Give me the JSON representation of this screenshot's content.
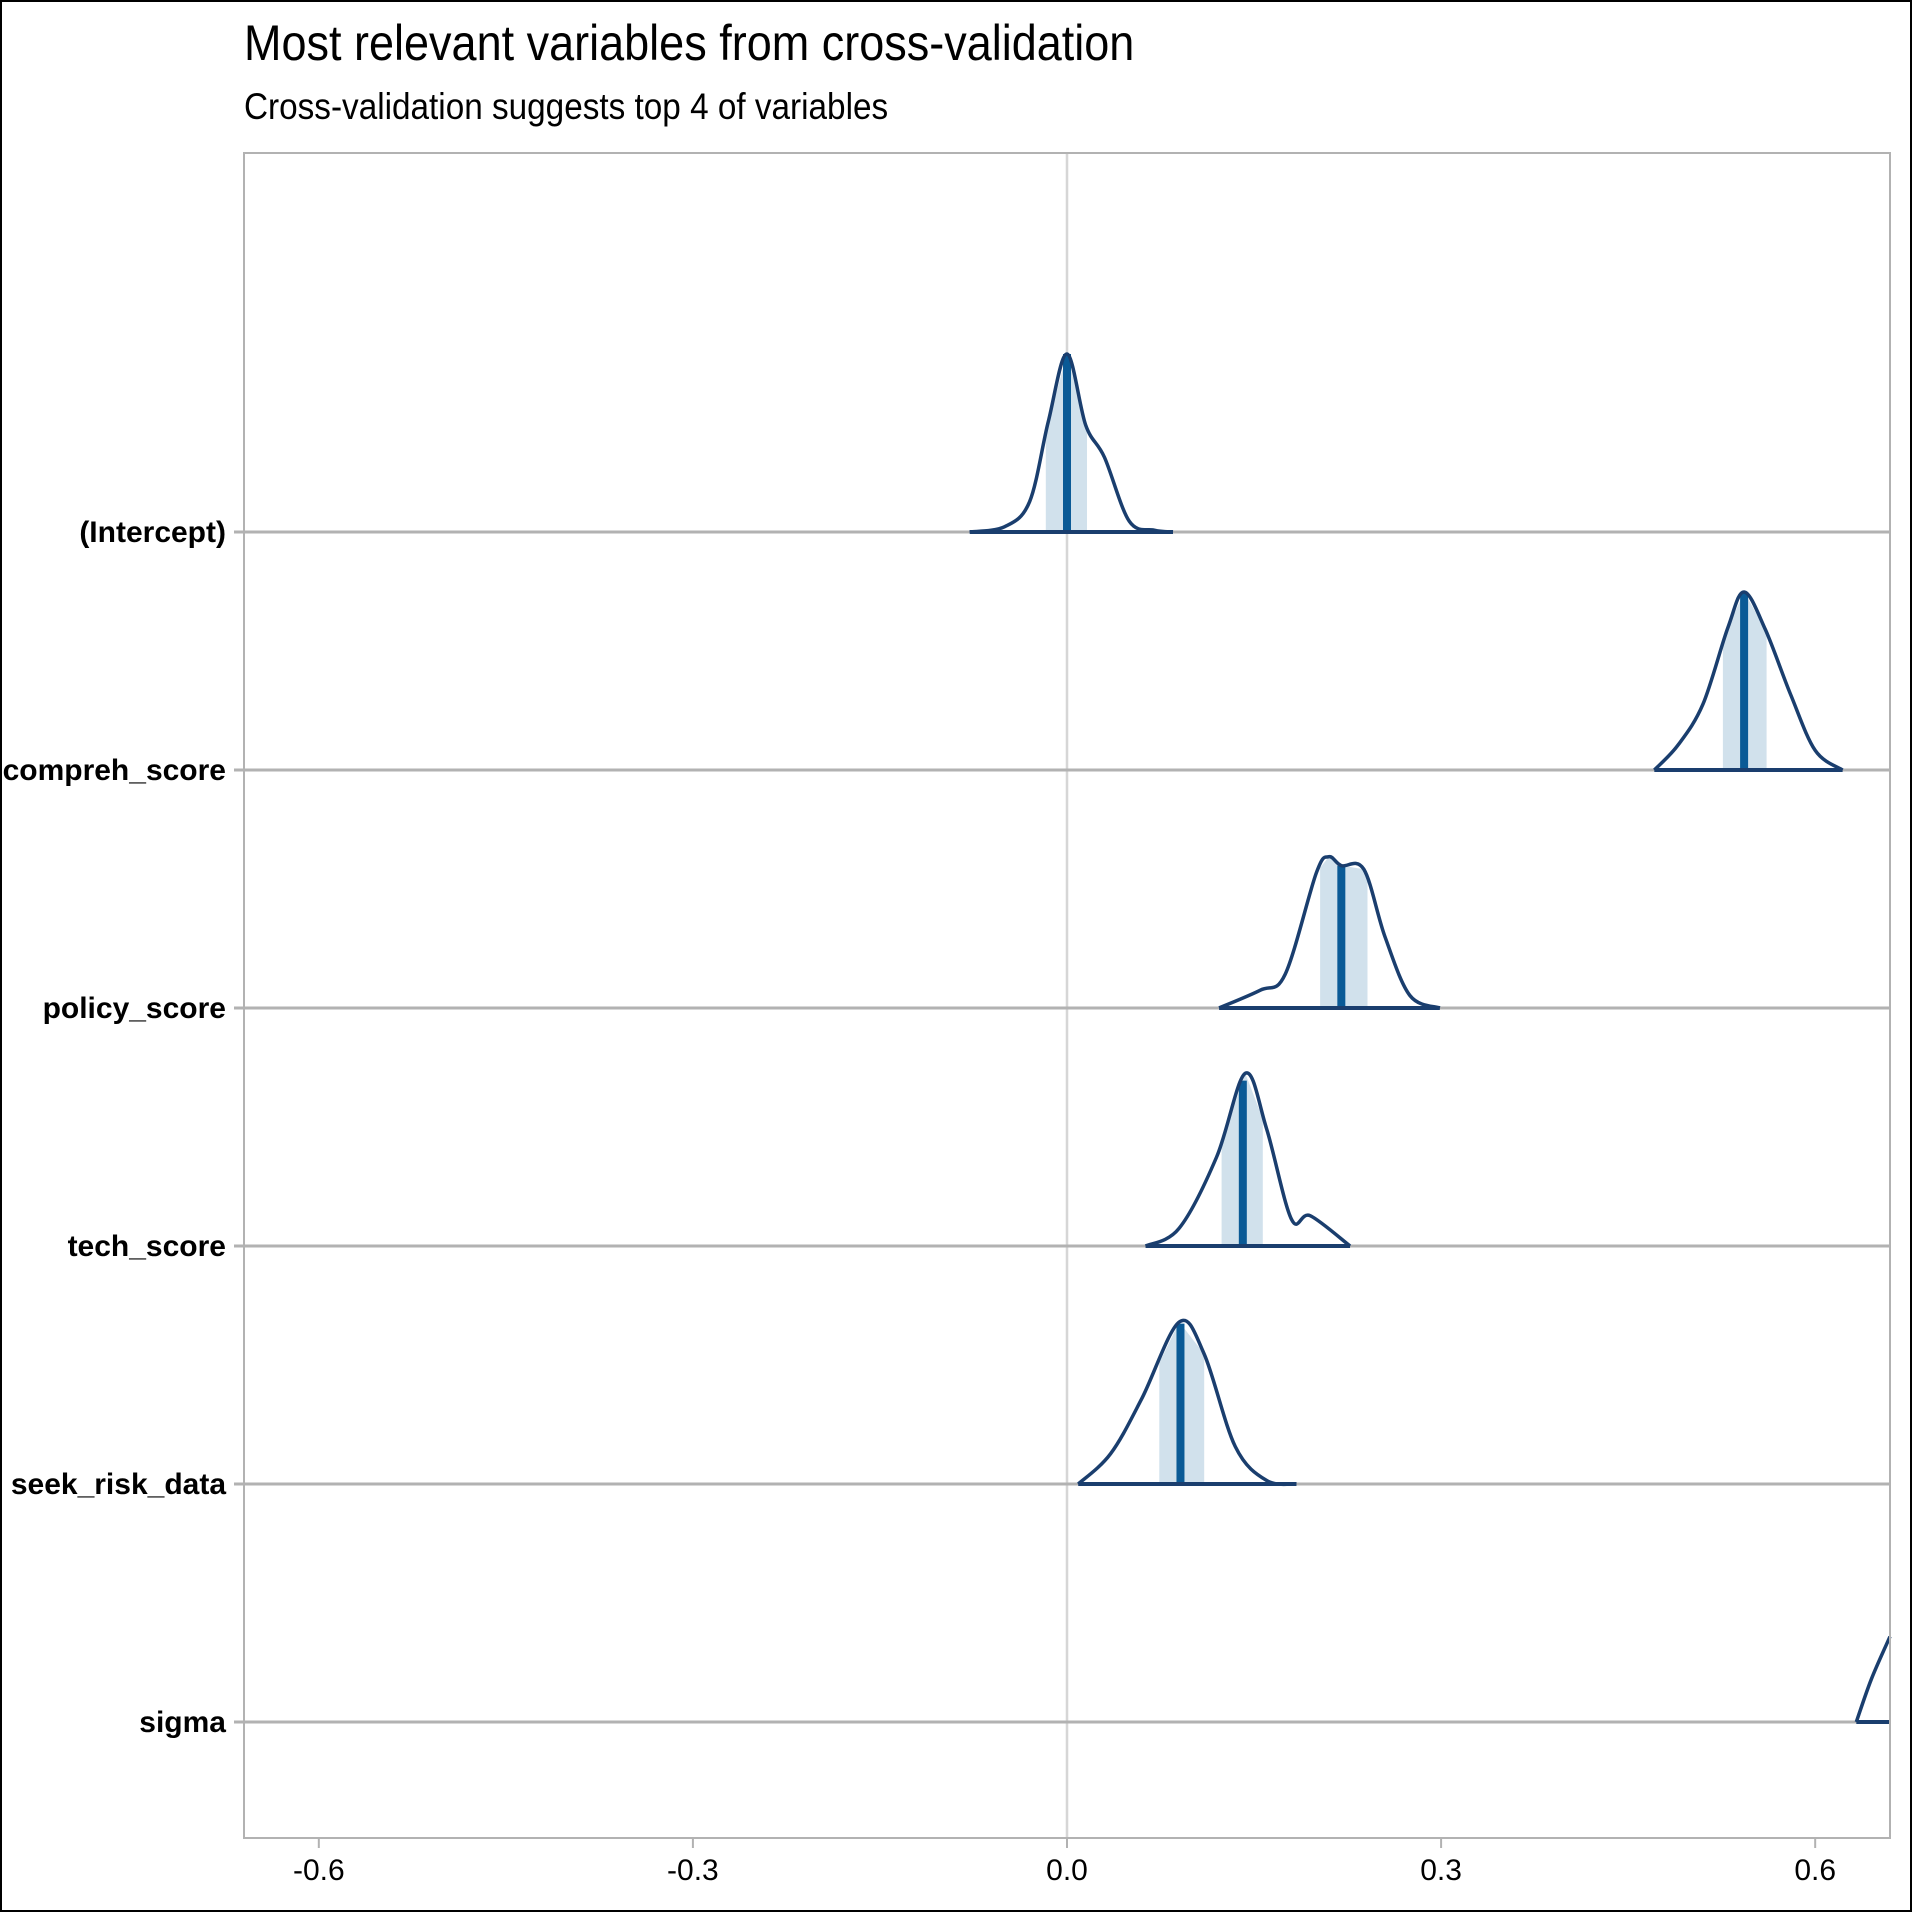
{
  "chart_data": {
    "type": "density-ridges",
    "title": "Most relevant variables from cross-validation",
    "subtitle": "Cross-validation suggests top 4 of variables",
    "xlabel": "",
    "ylabel": "",
    "xlim": [
      -0.66,
      0.66
    ],
    "x_ticks": [
      "-0.6",
      "-0.3",
      "0.0",
      "0.3",
      "0.6"
    ],
    "x_tick_values": [
      -0.6,
      -0.3,
      0.0,
      0.3,
      0.6
    ],
    "grid": true,
    "legend": "none",
    "series": [
      {
        "name": "(Intercept)",
        "median": 0.0,
        "inner": [
          -0.017,
          0.016
        ],
        "range": [
          -0.078,
          0.085
        ],
        "density": [
          [
            -0.078,
            0.0
          ],
          [
            -0.05,
            0.03
          ],
          [
            -0.03,
            0.17
          ],
          [
            -0.015,
            0.62
          ],
          [
            0.0,
            1.0
          ],
          [
            0.015,
            0.6
          ],
          [
            0.03,
            0.42
          ],
          [
            0.05,
            0.06
          ],
          [
            0.07,
            0.01
          ],
          [
            0.085,
            0.0
          ]
        ]
      },
      {
        "name": "compreh_score",
        "median": 0.543,
        "inner": [
          0.526,
          0.561
        ],
        "range": [
          0.471,
          0.622
        ],
        "density": [
          [
            0.471,
            0.0
          ],
          [
            0.49,
            0.14
          ],
          [
            0.51,
            0.37
          ],
          [
            0.53,
            0.8
          ],
          [
            0.543,
            1.0
          ],
          [
            0.56,
            0.79
          ],
          [
            0.58,
            0.43
          ],
          [
            0.6,
            0.11
          ],
          [
            0.622,
            0.0
          ]
        ]
      },
      {
        "name": "policy_score",
        "median": 0.22,
        "inner": [
          0.203,
          0.241
        ],
        "range": [
          0.122,
          0.299
        ],
        "density": [
          [
            0.122,
            0.0
          ],
          [
            0.155,
            0.1
          ],
          [
            0.175,
            0.19
          ],
          [
            0.2,
            0.76
          ],
          [
            0.21,
            0.85
          ],
          [
            0.22,
            0.8
          ],
          [
            0.238,
            0.78
          ],
          [
            0.255,
            0.4
          ],
          [
            0.275,
            0.07
          ],
          [
            0.299,
            0.0
          ]
        ]
      },
      {
        "name": "tech_score",
        "median": 0.141,
        "inner": [
          0.124,
          0.157
        ],
        "range": [
          0.063,
          0.227
        ],
        "density": [
          [
            0.063,
            0.0
          ],
          [
            0.09,
            0.1
          ],
          [
            0.12,
            0.5
          ],
          [
            0.143,
            0.97
          ],
          [
            0.16,
            0.66
          ],
          [
            0.18,
            0.15
          ],
          [
            0.195,
            0.17
          ],
          [
            0.227,
            0.0
          ]
        ]
      },
      {
        "name": "seek_risk_data",
        "median": 0.091,
        "inner": [
          0.074,
          0.11
        ],
        "range": [
          0.009,
          0.184
        ],
        "density": [
          [
            0.009,
            0.0
          ],
          [
            0.035,
            0.17
          ],
          [
            0.06,
            0.48
          ],
          [
            0.09,
            0.91
          ],
          [
            0.11,
            0.73
          ],
          [
            0.135,
            0.21
          ],
          [
            0.16,
            0.02
          ],
          [
            0.184,
            0.0
          ]
        ]
      },
      {
        "name": "sigma",
        "median": null,
        "inner": null,
        "range": [
          0.633,
          0.66
        ],
        "density": [
          [
            0.633,
            0.0
          ],
          [
            0.645,
            0.24
          ],
          [
            0.66,
            0.48
          ]
        ]
      }
    ]
  },
  "colors": {
    "outline": "#1a3e6e",
    "median": "#0a5a96",
    "interval_fill": "#d1e1ec",
    "baseline": "#b2b2b2",
    "zero_line": "#d6d6d6",
    "panel_border": "#b2b2b2"
  }
}
